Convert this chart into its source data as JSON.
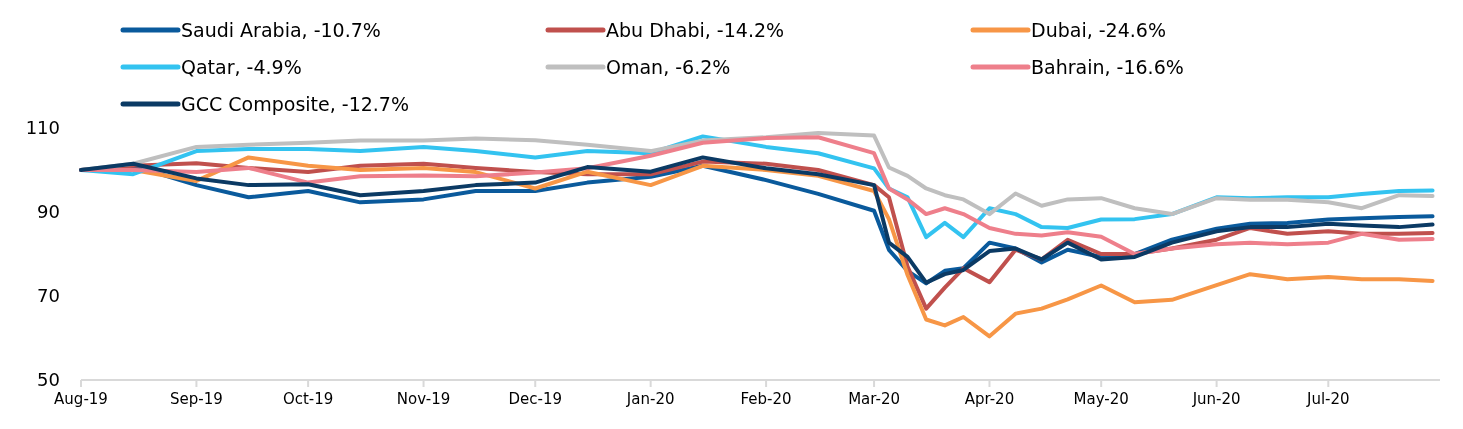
{
  "chart_data": {
    "type": "line",
    "legend": "top",
    "grid": false,
    "line_style": "solid",
    "marker": "none",
    "x": [
      "2019-08-01",
      "2019-08-15",
      "2019-09-01",
      "2019-09-15",
      "2019-10-01",
      "2019-10-15",
      "2019-11-01",
      "2019-11-15",
      "2019-12-01",
      "2019-12-15",
      "2020-01-01",
      "2020-01-15",
      "2020-02-01",
      "2020-02-15",
      "2020-03-01",
      "2020-03-05",
      "2020-03-10",
      "2020-03-15",
      "2020-03-20",
      "2020-03-25",
      "2020-04-01",
      "2020-04-08",
      "2020-04-15",
      "2020-04-22",
      "2020-05-01",
      "2020-05-10",
      "2020-05-20",
      "2020-06-01",
      "2020-06-10",
      "2020-06-20",
      "2020-07-01",
      "2020-07-10",
      "2020-07-20",
      "2020-07-29"
    ],
    "xlim": [
      "2019-08-01",
      "2020-07-31"
    ],
    "xticks": [
      {
        "value": "2019-08-01",
        "label": "Aug-19"
      },
      {
        "value": "2019-09-01",
        "label": "Sep-19"
      },
      {
        "value": "2019-10-01",
        "label": "Oct-19"
      },
      {
        "value": "2019-11-01",
        "label": "Nov-19"
      },
      {
        "value": "2019-12-01",
        "label": "Dec-19"
      },
      {
        "value": "2020-01-01",
        "label": "Jan-20"
      },
      {
        "value": "2020-02-01",
        "label": "Feb-20"
      },
      {
        "value": "2020-03-01",
        "label": "Mar-20"
      },
      {
        "value": "2020-04-01",
        "label": "Apr-20"
      },
      {
        "value": "2020-05-01",
        "label": "May-20"
      },
      {
        "value": "2020-06-01",
        "label": "Jun-20"
      },
      {
        "value": "2020-07-01",
        "label": "Jul-20"
      }
    ],
    "ylim": [
      50,
      110
    ],
    "yticks": [
      50,
      70,
      90,
      110
    ],
    "series": [
      {
        "name": "Saudi Arabia, -10.7%",
        "color": "#0a5a9c",
        "values": [
          100,
          101,
          96.4,
          93.5,
          95,
          92.3,
          93,
          95,
          95,
          97,
          98.4,
          101,
          97.6,
          94.3,
          90.3,
          81,
          76,
          73,
          76,
          76.6,
          82.7,
          81.3,
          78,
          81,
          79.3,
          80,
          83.4,
          86,
          87.2,
          87.4,
          88.2,
          88.5,
          88.8,
          89
        ]
      },
      {
        "name": "Abu Dhabi, -14.2%",
        "color": "#c0504d",
        "values": [
          100,
          101,
          101.6,
          100.5,
          99.5,
          101,
          101.5,
          100.5,
          99.5,
          99,
          99,
          102,
          101.5,
          100,
          96.4,
          93.5,
          77,
          67,
          72,
          76.6,
          73.3,
          81,
          78.7,
          83.4,
          80,
          80,
          81.3,
          83.4,
          86.2,
          84.8,
          85.4,
          84.8,
          84.8,
          85
        ]
      },
      {
        "name": "Dubai, -24.6%",
        "color": "#f79646",
        "values": [
          100,
          100,
          97.4,
          103,
          101,
          100,
          100.5,
          99.5,
          95.6,
          99.6,
          96.4,
          101,
          100,
          98.6,
          95,
          88.3,
          75,
          64.4,
          63,
          65,
          60.4,
          65.8,
          67,
          69.2,
          72.5,
          68.5,
          69.1,
          72.6,
          75.2,
          74,
          74.5,
          74,
          74,
          73.6
        ]
      },
      {
        "name": "Qatar, -4.9%",
        "color": "#33c3f0",
        "values": [
          100,
          99,
          104.5,
          105,
          105,
          104.5,
          105.5,
          104.5,
          103,
          104.5,
          104,
          108,
          105.5,
          104,
          100.4,
          95.6,
          93.5,
          84,
          87.4,
          84,
          90.9,
          89.5,
          86.4,
          86.2,
          88.2,
          88.3,
          89.5,
          93.5,
          93.3,
          93.5,
          93.5,
          94.3,
          95,
          95.1
        ]
      },
      {
        "name": "Oman, -6.2%",
        "color": "#bfbfbf",
        "values": [
          100,
          101.5,
          105.5,
          106,
          106.5,
          107,
          107,
          107.5,
          107.1,
          106,
          104.5,
          107,
          107.8,
          108.8,
          108.2,
          100.6,
          98.6,
          95.6,
          94,
          93,
          89.5,
          94.4,
          91.5,
          93,
          93.3,
          90.9,
          89.5,
          93.3,
          92.9,
          92.9,
          92.3,
          90.9,
          94,
          93.8
        ]
      },
      {
        "name": "Bahrain, -16.6%",
        "color": "#ee7f8b",
        "values": [
          100,
          100,
          99.5,
          100.5,
          97,
          98.5,
          98.7,
          98.5,
          99.4,
          100.4,
          103.4,
          106.5,
          107.6,
          107.8,
          104,
          95.6,
          93,
          89.5,
          90.9,
          89.5,
          86.2,
          84.8,
          84.4,
          85.2,
          84.1,
          80,
          81.3,
          82.3,
          82.7,
          82.3,
          82.7,
          84.8,
          83.4,
          83.6
        ]
      },
      {
        "name": "GCC Composite, -12.7%",
        "color": "#0b3a64",
        "values": [
          100,
          101.5,
          98,
          96.4,
          96.6,
          94,
          95,
          96.4,
          97,
          100.7,
          99.6,
          103,
          100.4,
          99,
          96.4,
          82.7,
          79.3,
          73.2,
          75.2,
          76.2,
          80.7,
          81.3,
          78.7,
          82.7,
          78.7,
          79.3,
          82.7,
          85.4,
          86.4,
          86.4,
          87.2,
          86.8,
          86.4,
          87
        ]
      }
    ]
  }
}
